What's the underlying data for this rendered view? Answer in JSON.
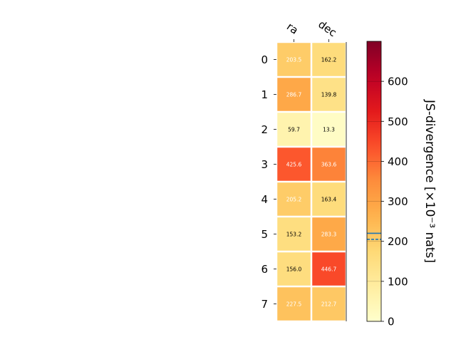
{
  "chart_data": {
    "type": "heatmap",
    "columns": [
      "ra",
      "dec"
    ],
    "rows": [
      "0",
      "1",
      "2",
      "3",
      "4",
      "5",
      "6",
      "7"
    ],
    "values": [
      [
        203.5,
        162.2
      ],
      [
        286.7,
        139.8
      ],
      [
        59.7,
        13.3
      ],
      [
        425.6,
        363.6
      ],
      [
        205.2,
        163.4
      ],
      [
        153.2,
        283.3
      ],
      [
        156.0,
        446.7
      ],
      [
        227.5,
        212.7
      ]
    ],
    "value_labels": [
      [
        "203.5",
        "162.2"
      ],
      [
        "286.7",
        "139.8"
      ],
      [
        "59.7",
        "13.3"
      ],
      [
        "425.6",
        "363.6"
      ],
      [
        "205.2",
        "163.4"
      ],
      [
        "153.2",
        "283.3"
      ],
      [
        "156.0",
        "446.7"
      ],
      [
        "227.5",
        "212.7"
      ]
    ],
    "colorbar": {
      "label": "JS-divergence [×10⁻³ nats]",
      "range": [
        0,
        700
      ],
      "ticks": [
        "0",
        "100",
        "200",
        "300",
        "400",
        "500",
        "600"
      ],
      "colormap": "YlOrRd",
      "marker_lines": [
        {
          "value": 220,
          "style": "solid",
          "color": "#1f77b4"
        },
        {
          "value": 205,
          "style": "dashed",
          "color": "#1f77b4"
        }
      ]
    },
    "grid": false
  }
}
